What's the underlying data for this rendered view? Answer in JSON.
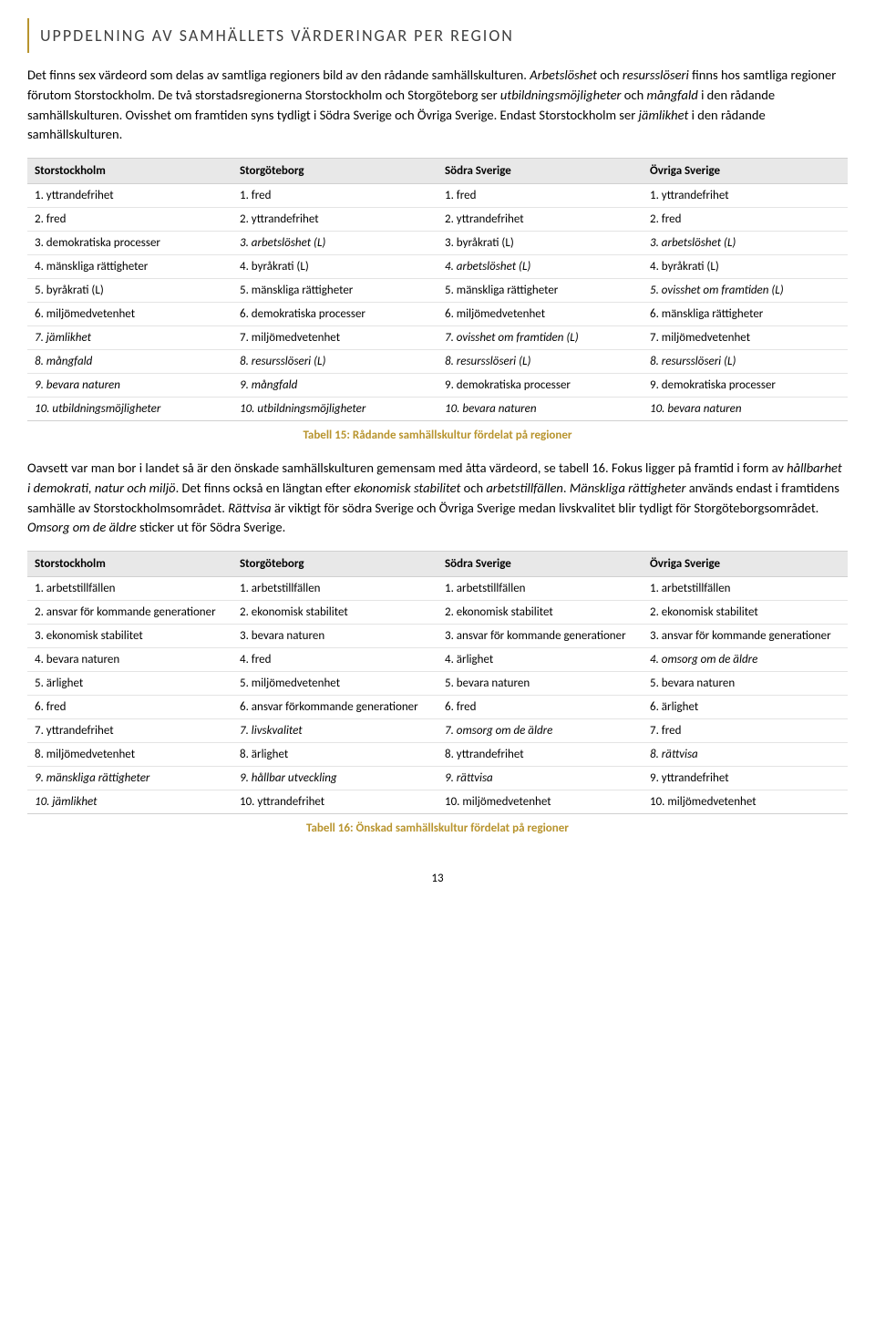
{
  "title": "UPPDELNING AV SAMHÄLLETS VÄRDERINGAR PER REGION",
  "intro_html": "Det finns sex värdeord som delas av samtliga regioners bild av den rådande samhällskulturen. <em>Arbetslöshet</em> och <em>resursslöseri</em> finns hos samtliga regioner förutom Storstockholm. De två storstadsregionerna Storstockholm och Storgöteborg ser <em>utbildningsmöjligheter</em> och <em>mångfald</em> i den rådande samhällskulturen. Ovisshet om framtiden syns tydligt i Södra Sverige och Övriga Sverige. Endast Storstockholm ser <em>jämlikhet</em> i den rådande samhällskulturen.",
  "table1": {
    "headers": [
      "Storstockholm",
      "Storgöteborg",
      "Södra Sverige",
      "Övriga Sverige"
    ],
    "rows": [
      [
        {
          "t": "1. yttrandefrihet",
          "i": false
        },
        {
          "t": "1. fred",
          "i": false
        },
        {
          "t": "1. fred",
          "i": false
        },
        {
          "t": "1. yttrandefrihet",
          "i": false
        }
      ],
      [
        {
          "t": "2. fred",
          "i": false
        },
        {
          "t": "2. yttrandefrihet",
          "i": false
        },
        {
          "t": "2. yttrandefrihet",
          "i": false
        },
        {
          "t": "2. fred",
          "i": false
        }
      ],
      [
        {
          "t": "3. demokratiska processer",
          "i": false
        },
        {
          "t": "3. arbetslöshet (L)",
          "i": true
        },
        {
          "t": "3. byråkrati (L)",
          "i": false
        },
        {
          "t": "3. arbetslöshet (L)",
          "i": true
        }
      ],
      [
        {
          "t": "4. mänskliga rättigheter",
          "i": false
        },
        {
          "t": "4. byråkrati (L)",
          "i": false
        },
        {
          "t": "4. arbetslöshet (L)",
          "i": true
        },
        {
          "t": "4. byråkrati (L)",
          "i": false
        }
      ],
      [
        {
          "t": "5. byråkrati (L)",
          "i": false
        },
        {
          "t": "5. mänskliga rättigheter",
          "i": false
        },
        {
          "t": "5. mänskliga rättigheter",
          "i": false
        },
        {
          "t": "5. ovisshet om framtiden (L)",
          "i": true
        }
      ],
      [
        {
          "t": "6. miljömedvetenhet",
          "i": false
        },
        {
          "t": "6. demokratiska processer",
          "i": false
        },
        {
          "t": "6. miljömedvetenhet",
          "i": false
        },
        {
          "t": "6. mänskliga rättigheter",
          "i": false
        }
      ],
      [
        {
          "t": "7. jämlikhet",
          "i": true
        },
        {
          "t": "7. miljömedvetenhet",
          "i": false
        },
        {
          "t": "7. ovisshet om framtiden (L)",
          "i": true
        },
        {
          "t": "7. miljömedvetenhet",
          "i": false
        }
      ],
      [
        {
          "t": "8. mångfald",
          "i": true
        },
        {
          "t": "8. resursslöseri (L)",
          "i": true
        },
        {
          "t": "8. resursslöseri (L)",
          "i": true
        },
        {
          "t": "8. resursslöseri (L)",
          "i": true
        }
      ],
      [
        {
          "t": "9. bevara naturen",
          "i": true
        },
        {
          "t": "9. mångfald",
          "i": true
        },
        {
          "t": "9. demokratiska processer",
          "i": false
        },
        {
          "t": "9. demokratiska processer",
          "i": false
        }
      ],
      [
        {
          "t": "10. utbildningsmöjligheter",
          "i": true
        },
        {
          "t": "10. utbildningsmöjligheter",
          "i": true
        },
        {
          "t": "10. bevara naturen",
          "i": true
        },
        {
          "t": "10. bevara naturen",
          "i": true
        }
      ]
    ]
  },
  "caption1": "Tabell 15: Rådande samhällskultur fördelat på regioner",
  "between_html": "Oavsett var man bor i landet så är den önskade samhällskulturen gemensam med åtta värdeord, se tabell 16. Fokus ligger på framtid i form av <em>hållbarhet i demokrati, natur och miljö</em>. Det finns också en längtan efter <em>ekonomisk stabilitet</em> och <em>arbetstillfällen</em>. <em>Mänskliga rättigheter</em> används endast i framtidens samhälle av Storstockholmsområdet. <em>Rättvisa</em> är viktigt för södra Sverige och Övriga Sverige medan livskvalitet blir tydligt för Storgöteborgsområdet. <em>Omsorg om de äldre</em> sticker ut för Södra Sverige.",
  "table2": {
    "headers": [
      "Storstockholm",
      "Storgöteborg",
      "Södra Sverige",
      "Övriga Sverige"
    ],
    "rows": [
      [
        {
          "t": "1. arbetstillfällen",
          "i": false
        },
        {
          "t": "1. arbetstillfällen",
          "i": false
        },
        {
          "t": "1. arbetstillfällen",
          "i": false
        },
        {
          "t": "1. arbetstillfällen",
          "i": false
        }
      ],
      [
        {
          "t": "2. ansvar för kommande generationer",
          "i": false
        },
        {
          "t": "2. ekonomisk stabilitet",
          "i": false
        },
        {
          "t": "2. ekonomisk stabilitet",
          "i": false
        },
        {
          "t": "2. ekonomisk stabilitet",
          "i": false
        }
      ],
      [
        {
          "t": "3. ekonomisk stabilitet",
          "i": false
        },
        {
          "t": "3. bevara naturen",
          "i": false
        },
        {
          "t": "3. ansvar för kommande generationer",
          "i": false
        },
        {
          "t": "3. ansvar för kommande generationer",
          "i": false
        }
      ],
      [
        {
          "t": "4. bevara naturen",
          "i": false
        },
        {
          "t": "4. fred",
          "i": false
        },
        {
          "t": "4. ärlighet",
          "i": false
        },
        {
          "t": "4. omsorg om de äldre",
          "i": true
        }
      ],
      [
        {
          "t": "5. ärlighet",
          "i": false
        },
        {
          "t": "5. miljömedvetenhet",
          "i": false
        },
        {
          "t": "5. bevara naturen",
          "i": false
        },
        {
          "t": "5. bevara naturen",
          "i": false
        }
      ],
      [
        {
          "t": "6. fred",
          "i": false
        },
        {
          "t": "6. ansvar förkommande generationer",
          "i": false
        },
        {
          "t": "6. fred",
          "i": false
        },
        {
          "t": "6. ärlighet",
          "i": false
        }
      ],
      [
        {
          "t": "7. yttrandefrihet",
          "i": false
        },
        {
          "t": "7. livskvalitet",
          "i": true
        },
        {
          "t": "7. omsorg om de äldre",
          "i": true
        },
        {
          "t": "7. fred",
          "i": false
        }
      ],
      [
        {
          "t": "8. miljömedvetenhet",
          "i": false
        },
        {
          "t": "8. ärlighet",
          "i": false
        },
        {
          "t": "8. yttrandefrihet",
          "i": false
        },
        {
          "t": "8. rättvisa",
          "i": true
        }
      ],
      [
        {
          "t": "9. mänskliga rättigheter",
          "i": true
        },
        {
          "t": "9. hållbar utveckling",
          "i": true
        },
        {
          "t": "9. rättvisa",
          "i": true
        },
        {
          "t": "9. yttrandefrihet",
          "i": false
        }
      ],
      [
        {
          "t": "10. jämlikhet",
          "i": true
        },
        {
          "t": "10. yttrandefrihet",
          "i": false
        },
        {
          "t": "10. miljömedvetenhet",
          "i": false
        },
        {
          "t": "10. miljömedvetenhet",
          "i": false
        }
      ]
    ]
  },
  "caption2": "Tabell 16: Önskad samhällskultur fördelat på regioner",
  "page_number": "13",
  "colors": {
    "accent": "#b8942e",
    "header_bg": "#e8e8e8",
    "border": "#d0d0d0",
    "text": "#000000",
    "title_text": "#404040"
  }
}
